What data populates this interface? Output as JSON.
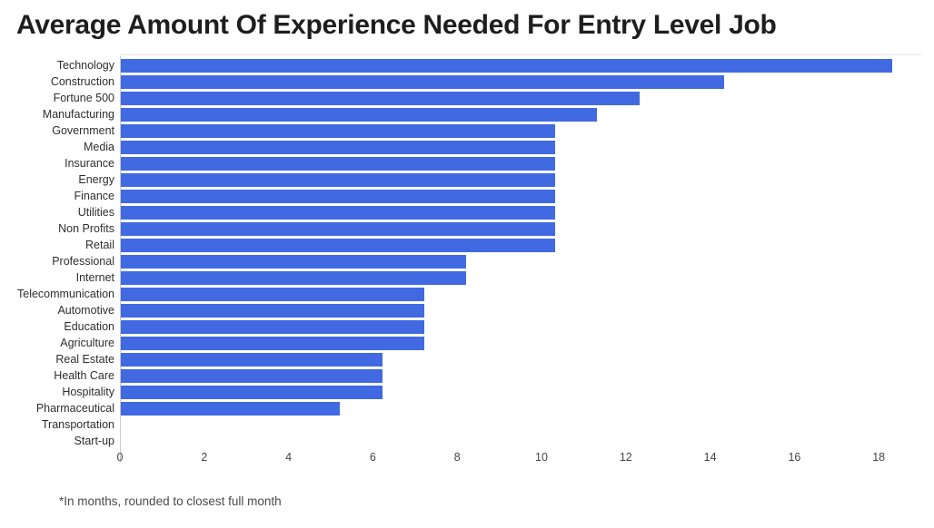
{
  "page": {
    "title": "Average Amount Of Experience Needed For Entry Level Job",
    "footnote": "*In months, rounded to closest full month"
  },
  "colors": {
    "bar_fill": "#4169e1",
    "title_text": "#1e1e1e",
    "category_text": "#2e2e2e",
    "tick_text": "#454545",
    "footnote_text": "#4a4a4a",
    "axis_line": "#c9c9c9",
    "background": "#ffffff"
  },
  "chart_data": {
    "type": "bar",
    "orientation": "horizontal",
    "title": "Average Amount Of Experience Needed For Entry Level Job",
    "xlabel": "",
    "ylabel": "",
    "unit_note": "*In months, rounded to closest full month",
    "categories": [
      "Technology",
      "Construction",
      "Fortune 500",
      "Manufacturing",
      "Government",
      "Media",
      "Insurance",
      "Energy",
      "Finance",
      "Utilities",
      "Non Profits",
      "Retail",
      "Professional",
      "Internet",
      "Telecommunication",
      "Automotive",
      "Education",
      "Agriculture",
      "Real Estate",
      "Health Care",
      "Hospitality",
      "Pharmaceutical",
      "Transportation",
      "Start-up"
    ],
    "values": [
      18.3,
      14.3,
      12.3,
      11.3,
      10.3,
      10.3,
      10.3,
      10.3,
      10.3,
      10.3,
      10.3,
      10.3,
      8.2,
      8.2,
      7.2,
      7.2,
      7.2,
      7.2,
      6.2,
      6.2,
      6.2,
      5.2,
      0,
      0
    ],
    "xlim": [
      0,
      18.5
    ],
    "xticks": [
      0,
      2,
      4,
      6,
      8,
      10,
      12,
      14,
      16,
      18
    ],
    "grid": false,
    "legend": false
  }
}
